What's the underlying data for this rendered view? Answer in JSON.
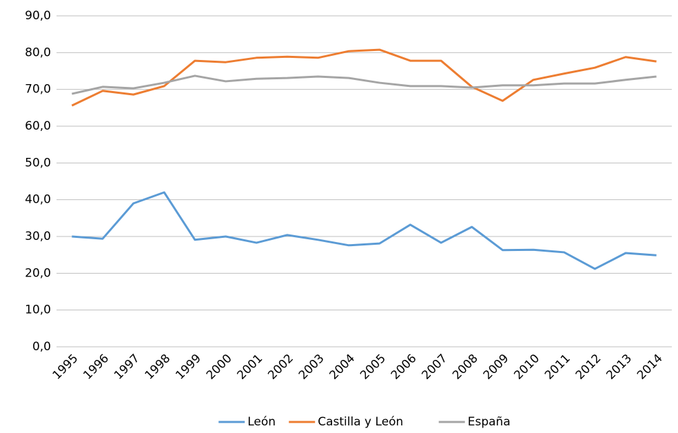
{
  "chart_data": {
    "type": "line",
    "categories": [
      "1995",
      "1996",
      "1997",
      "1998",
      "1999",
      "2000",
      "2001",
      "2002",
      "2003",
      "2004",
      "2005",
      "2006",
      "2007",
      "2008",
      "2009",
      "2010",
      "2011",
      "2012",
      "2013",
      "2014"
    ],
    "series": [
      {
        "name": "León",
        "color": "#5b9bd5",
        "values": [
          30.0,
          29.4,
          39.0,
          42.0,
          29.1,
          30.0,
          28.3,
          30.4,
          29.1,
          27.6,
          28.1,
          33.2,
          28.3,
          32.6,
          26.3,
          26.4,
          25.7,
          21.2,
          25.5,
          24.9
        ]
      },
      {
        "name": "Castilla y León",
        "color": "#ed7d31",
        "values": [
          65.6,
          69.6,
          68.6,
          70.9,
          77.8,
          77.4,
          78.6,
          78.9,
          78.6,
          80.4,
          80.8,
          77.8,
          77.8,
          70.7,
          66.9,
          72.6,
          74.3,
          75.9,
          78.8,
          77.6
        ]
      },
      {
        "name": "España",
        "color": "#a5a5a5",
        "values": [
          68.8,
          70.7,
          70.3,
          71.8,
          73.7,
          72.2,
          72.9,
          73.1,
          73.5,
          73.1,
          71.8,
          70.9,
          70.9,
          70.5,
          71.1,
          71.1,
          71.6,
          71.6,
          72.6,
          73.5
        ]
      }
    ],
    "ylim": [
      0,
      90
    ],
    "yticks": [
      {
        "value": 0,
        "label": "0,0"
      },
      {
        "value": 10,
        "label": "10,0"
      },
      {
        "value": 20,
        "label": "20,0"
      },
      {
        "value": 30,
        "label": "30,0"
      },
      {
        "value": 40,
        "label": "40,0"
      },
      {
        "value": 50,
        "label": "50,0"
      },
      {
        "value": 60,
        "label": "60,0"
      },
      {
        "value": 70,
        "label": "70,0"
      },
      {
        "value": 80,
        "label": "80,0"
      },
      {
        "value": 90,
        "label": "90,0"
      }
    ],
    "grid": true,
    "legend": "bottom"
  }
}
